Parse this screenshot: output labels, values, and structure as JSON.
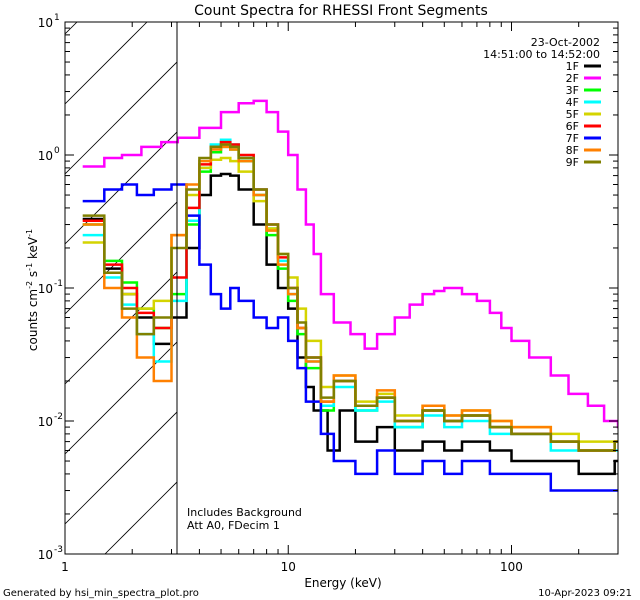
{
  "chart_data": {
    "type": "line",
    "title": "Count Spectra for RHESSI Front Segments",
    "xlabel": "Energy (keV)",
    "ylabel_main": "counts cm",
    "ylabel_sup1": "-2",
    "ylabel_mid": " s",
    "ylabel_sup2": "-1",
    "ylabel_end": " keV",
    "ylabel_sup3": "-1",
    "x_scale": "log",
    "y_scale": "log",
    "xlim": [
      1,
      300
    ],
    "ylim": [
      0.001,
      10
    ],
    "x_ticks": [
      {
        "value": 1,
        "label": "1"
      },
      {
        "value": 10,
        "label": "10"
      },
      {
        "value": 100,
        "label": "100"
      }
    ],
    "y_ticks": [
      {
        "value": 0.001,
        "base": "10",
        "exp": "-3"
      },
      {
        "value": 0.01,
        "base": "10",
        "exp": "-2"
      },
      {
        "value": 0.1,
        "base": "10",
        "exp": "-1"
      },
      {
        "value": 1,
        "base": "10",
        "exp": "0"
      },
      {
        "value": 10,
        "base": "10",
        "exp": "1"
      }
    ],
    "hatched_region_keV": [
      1,
      3
    ],
    "date": "23-Oct-2002",
    "time_range": "14:51:00 to 14:52:00",
    "annotation_line1": "Includes Background",
    "annotation_line2": "Att A0, FDecim 1",
    "footer_left": "Generated by hsi_min_spectra_plot.pro",
    "footer_right": "10-Apr-2023 09:21",
    "series": [
      {
        "name": "1F",
        "color": "#000000",
        "points": [
          [
            1.2,
            0.33
          ],
          [
            1.5,
            0.14
          ],
          [
            1.8,
            0.09
          ],
          [
            2.1,
            0.06
          ],
          [
            2.5,
            0.038
          ],
          [
            3,
            0.06
          ],
          [
            3.5,
            0.2
          ],
          [
            4,
            0.5
          ],
          [
            4.5,
            0.7
          ],
          [
            5,
            0.72
          ],
          [
            5.5,
            0.7
          ],
          [
            6,
            0.55
          ],
          [
            7,
            0.3
          ],
          [
            8,
            0.15
          ],
          [
            9,
            0.1
          ],
          [
            10,
            0.07
          ],
          [
            11,
            0.03
          ],
          [
            12,
            0.018
          ],
          [
            13,
            0.012
          ],
          [
            15,
            0.006
          ],
          [
            17,
            0.012
          ],
          [
            20,
            0.007
          ],
          [
            25,
            0.009
          ],
          [
            30,
            0.006
          ],
          [
            40,
            0.007
          ],
          [
            50,
            0.006
          ],
          [
            60,
            0.007
          ],
          [
            80,
            0.006
          ],
          [
            100,
            0.005
          ],
          [
            150,
            0.005
          ],
          [
            200,
            0.004
          ],
          [
            290,
            0.005
          ]
        ]
      },
      {
        "name": "2F",
        "color": "#ff00ff",
        "points": [
          [
            1.2,
            0.82
          ],
          [
            1.5,
            0.95
          ],
          [
            1.8,
            1.0
          ],
          [
            2.2,
            1.15
          ],
          [
            2.7,
            1.25
          ],
          [
            3.2,
            1.35
          ],
          [
            4,
            1.6
          ],
          [
            5,
            2.1
          ],
          [
            6,
            2.45
          ],
          [
            7,
            2.55
          ],
          [
            8,
            2.1
          ],
          [
            9,
            1.5
          ],
          [
            10,
            1.0
          ],
          [
            11,
            0.55
          ],
          [
            12,
            0.3
          ],
          [
            13,
            0.18
          ],
          [
            14,
            0.09
          ],
          [
            16,
            0.055
          ],
          [
            19,
            0.045
          ],
          [
            22,
            0.035
          ],
          [
            25,
            0.045
          ],
          [
            30,
            0.06
          ],
          [
            35,
            0.075
          ],
          [
            40,
            0.09
          ],
          [
            45,
            0.095
          ],
          [
            50,
            0.1
          ],
          [
            60,
            0.09
          ],
          [
            70,
            0.08
          ],
          [
            80,
            0.065
          ],
          [
            90,
            0.05
          ],
          [
            100,
            0.04
          ],
          [
            120,
            0.03
          ],
          [
            150,
            0.022
          ],
          [
            180,
            0.016
          ],
          [
            220,
            0.013
          ],
          [
            260,
            0.01
          ],
          [
            300,
            0.009
          ]
        ]
      },
      {
        "name": "3F",
        "color": "#00ff00",
        "points": [
          [
            1.2,
            0.3
          ],
          [
            1.5,
            0.16
          ],
          [
            1.8,
            0.11
          ],
          [
            2.1,
            0.07
          ],
          [
            2.5,
            0.05
          ],
          [
            3,
            0.09
          ],
          [
            3.5,
            0.3
          ],
          [
            4,
            0.75
          ],
          [
            4.5,
            1.05
          ],
          [
            5,
            1.15
          ],
          [
            5.5,
            1.1
          ],
          [
            6,
            0.9
          ],
          [
            7,
            0.5
          ],
          [
            8,
            0.25
          ],
          [
            9,
            0.14
          ],
          [
            10,
            0.08
          ],
          [
            11,
            0.045
          ],
          [
            12,
            0.025
          ],
          [
            14,
            0.012
          ],
          [
            16,
            0.02
          ],
          [
            20,
            0.012
          ],
          [
            25,
            0.015
          ],
          [
            30,
            0.009
          ],
          [
            40,
            0.012
          ],
          [
            50,
            0.01
          ],
          [
            60,
            0.011
          ],
          [
            80,
            0.009
          ],
          [
            100,
            0.008
          ],
          [
            150,
            0.007
          ],
          [
            200,
            0.006
          ],
          [
            290,
            0.007
          ]
        ]
      },
      {
        "name": "4F",
        "color": "#00ffff",
        "points": [
          [
            1.2,
            0.25
          ],
          [
            1.5,
            0.12
          ],
          [
            1.8,
            0.075
          ],
          [
            2.1,
            0.045
          ],
          [
            2.5,
            0.028
          ],
          [
            3,
            0.08
          ],
          [
            3.5,
            0.32
          ],
          [
            4,
            0.8
          ],
          [
            4.5,
            1.2
          ],
          [
            5,
            1.3
          ],
          [
            5.5,
            1.2
          ],
          [
            6,
            0.95
          ],
          [
            7,
            0.55
          ],
          [
            8,
            0.28
          ],
          [
            9,
            0.16
          ],
          [
            10,
            0.09
          ],
          [
            11,
            0.05
          ],
          [
            12,
            0.028
          ],
          [
            14,
            0.013
          ],
          [
            16,
            0.018
          ],
          [
            20,
            0.012
          ],
          [
            25,
            0.014
          ],
          [
            30,
            0.009
          ],
          [
            40,
            0.011
          ],
          [
            50,
            0.009
          ],
          [
            60,
            0.01
          ],
          [
            80,
            0.008
          ],
          [
            100,
            0.008
          ],
          [
            150,
            0.006
          ],
          [
            200,
            0.006
          ],
          [
            290,
            0.006
          ]
        ]
      },
      {
        "name": "5F",
        "color": "#d4d400",
        "points": [
          [
            1.2,
            0.22
          ],
          [
            1.5,
            0.13
          ],
          [
            1.8,
            0.09
          ],
          [
            2.1,
            0.07
          ],
          [
            2.5,
            0.08
          ],
          [
            3,
            0.25
          ],
          [
            3.5,
            0.5
          ],
          [
            4,
            0.8
          ],
          [
            4.5,
            0.92
          ],
          [
            5,
            0.95
          ],
          [
            5.5,
            0.9
          ],
          [
            6,
            0.75
          ],
          [
            7,
            0.45
          ],
          [
            8,
            0.28
          ],
          [
            9,
            0.18
          ],
          [
            10,
            0.12
          ],
          [
            11,
            0.07
          ],
          [
            12,
            0.04
          ],
          [
            14,
            0.018
          ],
          [
            16,
            0.022
          ],
          [
            20,
            0.014
          ],
          [
            25,
            0.016
          ],
          [
            30,
            0.011
          ],
          [
            40,
            0.013
          ],
          [
            50,
            0.011
          ],
          [
            60,
            0.012
          ],
          [
            80,
            0.01
          ],
          [
            100,
            0.009
          ],
          [
            150,
            0.008
          ],
          [
            200,
            0.007
          ],
          [
            290,
            0.007
          ]
        ]
      },
      {
        "name": "6F",
        "color": "#ff0000",
        "points": [
          [
            1.2,
            0.32
          ],
          [
            1.5,
            0.15
          ],
          [
            1.8,
            0.1
          ],
          [
            2.1,
            0.065
          ],
          [
            2.5,
            0.05
          ],
          [
            3,
            0.12
          ],
          [
            3.5,
            0.4
          ],
          [
            4,
            0.85
          ],
          [
            4.5,
            1.15
          ],
          [
            5,
            1.25
          ],
          [
            5.5,
            1.2
          ],
          [
            6,
            1.0
          ],
          [
            7,
            0.55
          ],
          [
            8,
            0.3
          ],
          [
            9,
            0.17
          ],
          [
            10,
            0.1
          ],
          [
            11,
            0.05
          ],
          [
            12,
            0.03
          ],
          [
            14,
            0.014
          ],
          [
            16,
            0.02
          ],
          [
            20,
            0.013
          ],
          [
            25,
            0.015
          ],
          [
            30,
            0.01
          ],
          [
            40,
            0.012
          ],
          [
            50,
            0.01
          ],
          [
            60,
            0.011
          ],
          [
            80,
            0.009
          ],
          [
            100,
            0.008
          ],
          [
            150,
            0.007
          ],
          [
            200,
            0.006
          ],
          [
            290,
            0.007
          ]
        ]
      },
      {
        "name": "7F",
        "color": "#0000ff",
        "points": [
          [
            1.2,
            0.45
          ],
          [
            1.5,
            0.55
          ],
          [
            1.8,
            0.6
          ],
          [
            2.1,
            0.5
          ],
          [
            2.5,
            0.55
          ],
          [
            3,
            0.6
          ],
          [
            3.5,
            0.35
          ],
          [
            4,
            0.15
          ],
          [
            4.5,
            0.09
          ],
          [
            5,
            0.07
          ],
          [
            5.5,
            0.1
          ],
          [
            6,
            0.08
          ],
          [
            7,
            0.06
          ],
          [
            8,
            0.05
          ],
          [
            9,
            0.06
          ],
          [
            10,
            0.04
          ],
          [
            11,
            0.025
          ],
          [
            12,
            0.014
          ],
          [
            14,
            0.008
          ],
          [
            16,
            0.005
          ],
          [
            20,
            0.004
          ],
          [
            25,
            0.006
          ],
          [
            30,
            0.004
          ],
          [
            40,
            0.005
          ],
          [
            50,
            0.004
          ],
          [
            60,
            0.005
          ],
          [
            80,
            0.004
          ],
          [
            100,
            0.004
          ],
          [
            150,
            0.003
          ],
          [
            200,
            0.003
          ],
          [
            290,
            0.003
          ]
        ]
      },
      {
        "name": "8F",
        "color": "#ff8000",
        "points": [
          [
            1.2,
            0.3
          ],
          [
            1.5,
            0.1
          ],
          [
            1.8,
            0.06
          ],
          [
            2.1,
            0.03
          ],
          [
            2.5,
            0.02
          ],
          [
            3,
            0.25
          ],
          [
            3.5,
            0.6
          ],
          [
            4,
            0.9
          ],
          [
            4.5,
            1.1
          ],
          [
            5,
            1.15
          ],
          [
            5.5,
            1.1
          ],
          [
            6,
            0.9
          ],
          [
            7,
            0.5
          ],
          [
            8,
            0.27
          ],
          [
            9,
            0.15
          ],
          [
            10,
            0.09
          ],
          [
            11,
            0.05
          ],
          [
            12,
            0.028
          ],
          [
            14,
            0.014
          ],
          [
            16,
            0.022
          ],
          [
            20,
            0.013
          ],
          [
            25,
            0.017
          ],
          [
            30,
            0.01
          ],
          [
            40,
            0.013
          ],
          [
            50,
            0.011
          ],
          [
            60,
            0.012
          ],
          [
            80,
            0.01
          ],
          [
            100,
            0.009
          ],
          [
            150,
            0.007
          ],
          [
            200,
            0.006
          ],
          [
            290,
            0.007
          ]
        ]
      },
      {
        "name": "9F",
        "color": "#808000",
        "points": [
          [
            1.2,
            0.35
          ],
          [
            1.5,
            0.13
          ],
          [
            1.8,
            0.07
          ],
          [
            2.1,
            0.045
          ],
          [
            2.5,
            0.06
          ],
          [
            3,
            0.2
          ],
          [
            3.5,
            0.55
          ],
          [
            4,
            0.95
          ],
          [
            4.5,
            1.15
          ],
          [
            5,
            1.2
          ],
          [
            5.5,
            1.15
          ],
          [
            6,
            0.95
          ],
          [
            7,
            0.55
          ],
          [
            8,
            0.3
          ],
          [
            9,
            0.18
          ],
          [
            10,
            0.1
          ],
          [
            11,
            0.055
          ],
          [
            12,
            0.03
          ],
          [
            14,
            0.015
          ],
          [
            16,
            0.02
          ],
          [
            20,
            0.013
          ],
          [
            25,
            0.015
          ],
          [
            30,
            0.01
          ],
          [
            40,
            0.012
          ],
          [
            50,
            0.01
          ],
          [
            60,
            0.011
          ],
          [
            80,
            0.009
          ],
          [
            100,
            0.008
          ],
          [
            150,
            0.007
          ],
          [
            200,
            0.006
          ],
          [
            290,
            0.007
          ]
        ]
      }
    ]
  }
}
